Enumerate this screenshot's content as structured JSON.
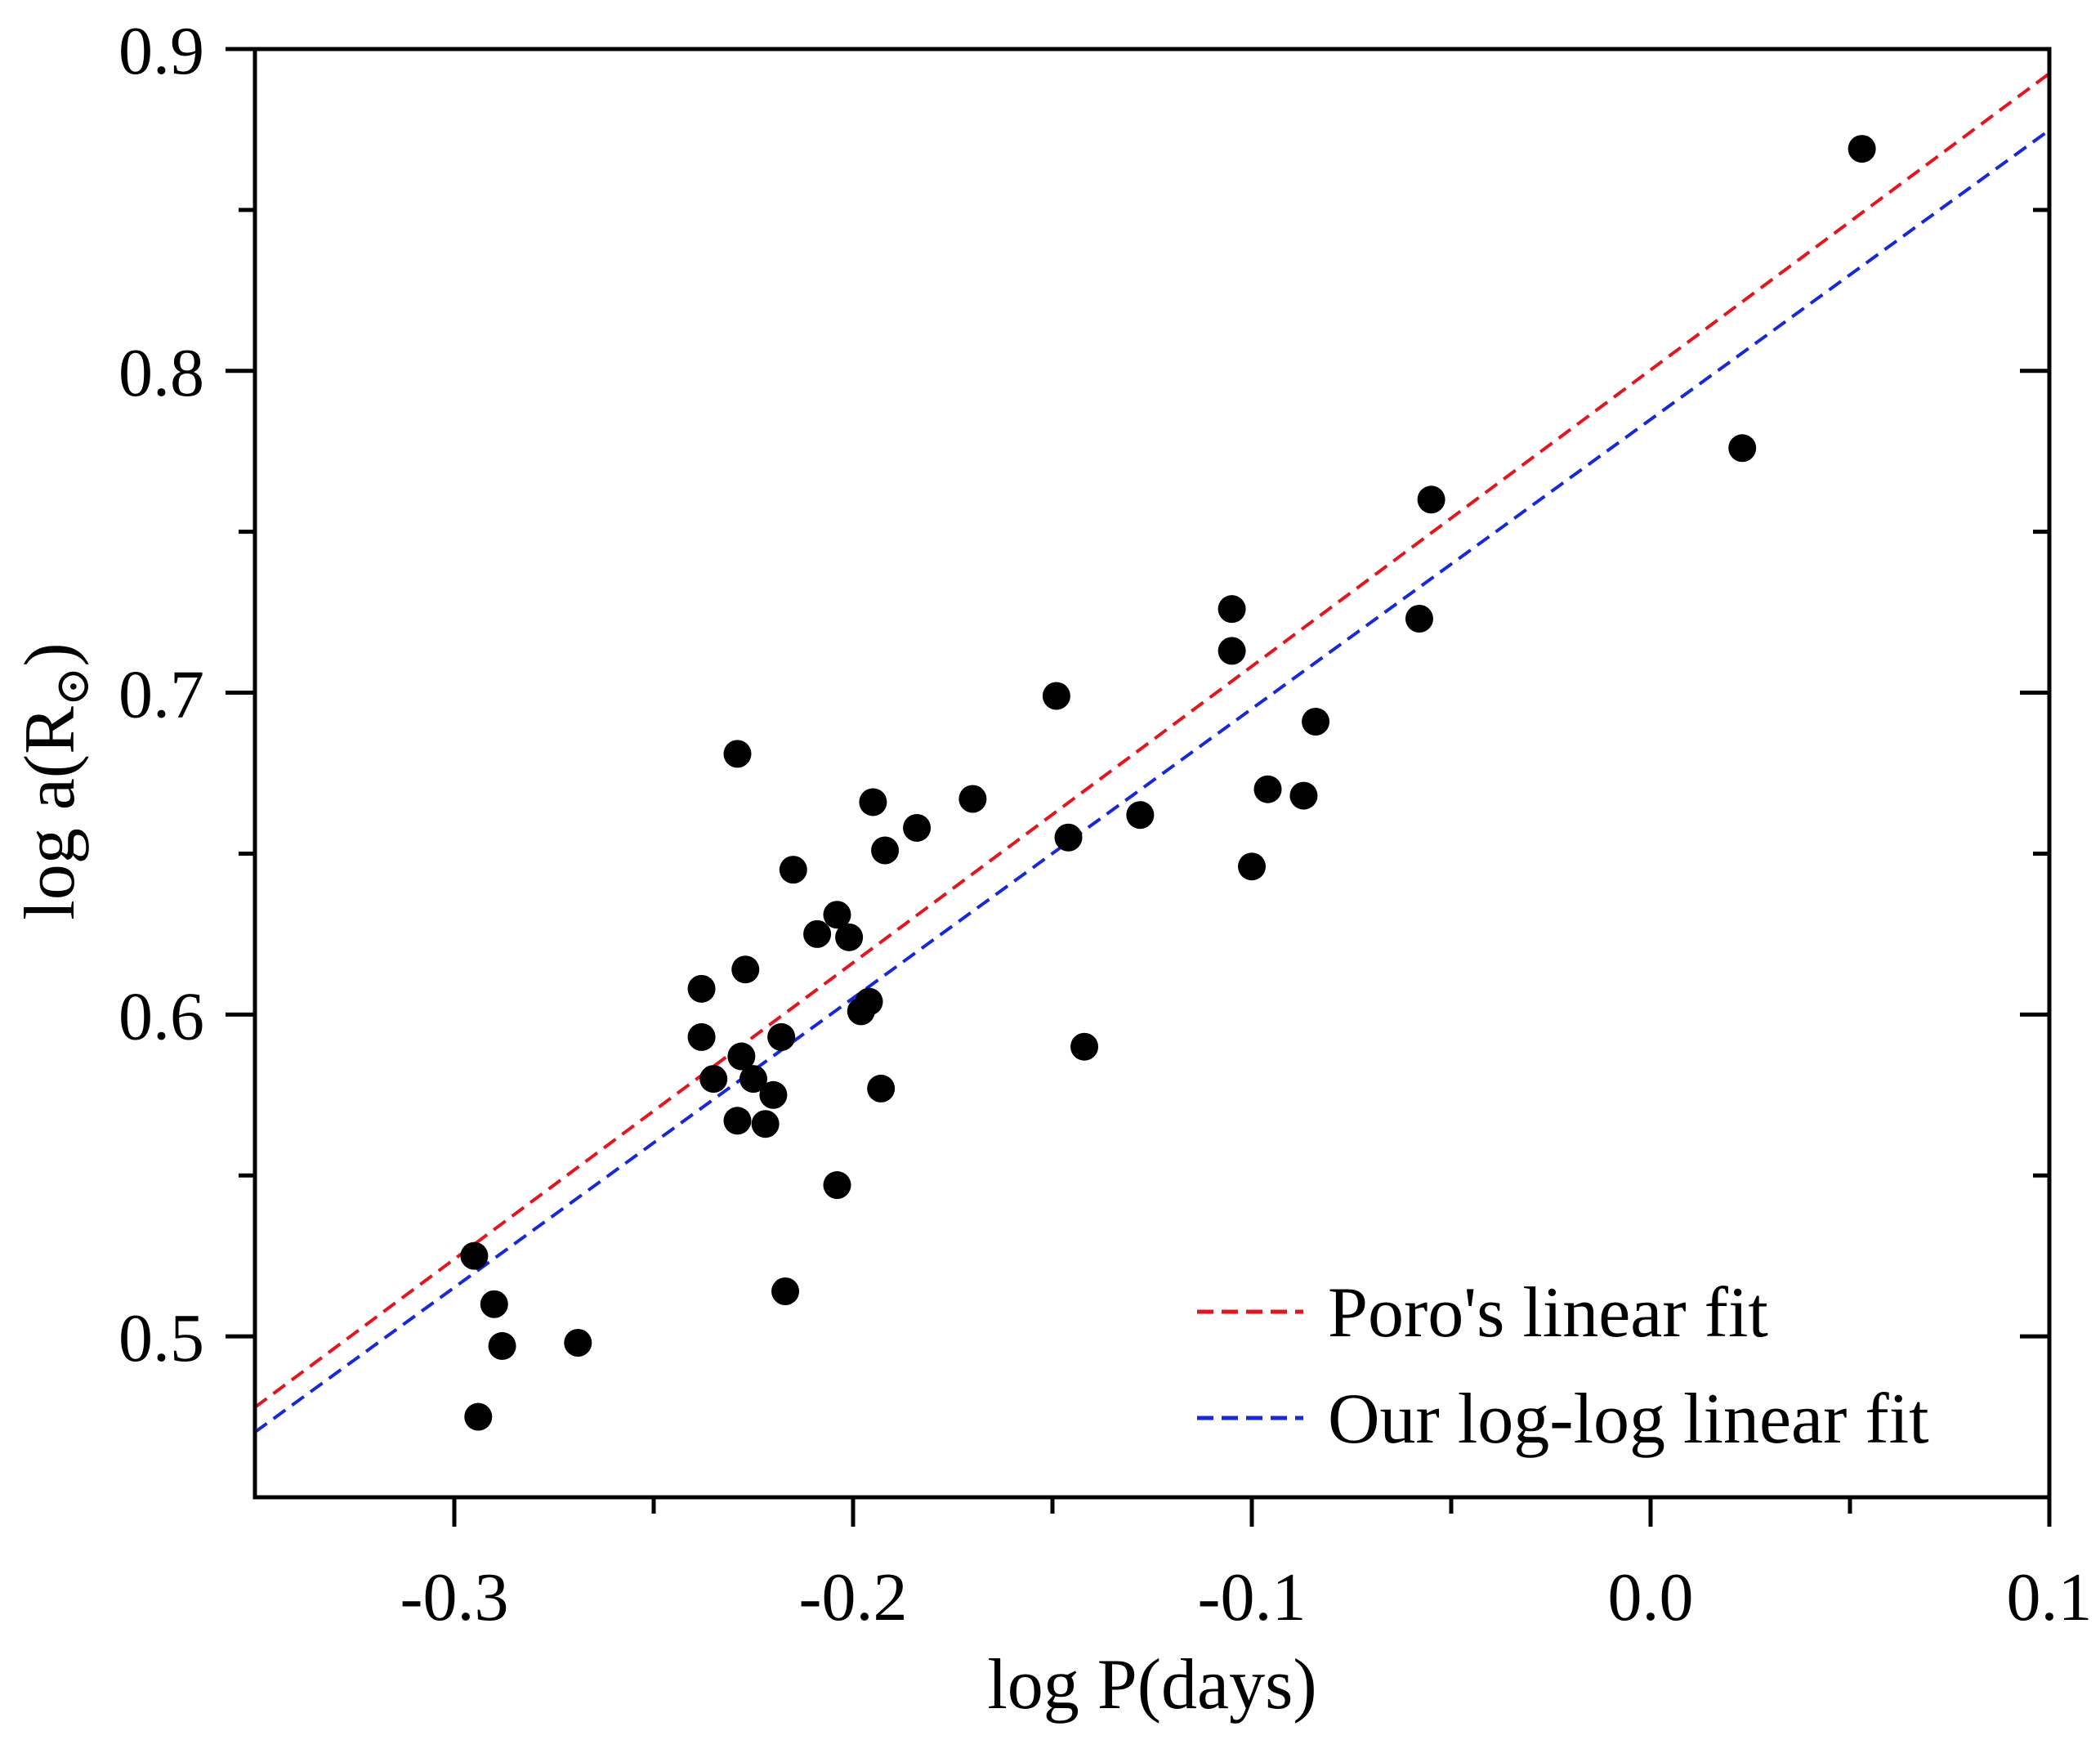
{
  "chart_data": {
    "type": "scatter",
    "title": "",
    "xlabel": "log P(days)",
    "ylabel_main": "log a(R",
    "ylabel_sub": "⊙",
    "ylabel_close": ")",
    "xlim": [
      -0.35,
      0.1
    ],
    "ylim": [
      0.45,
      0.9
    ],
    "x_ticks": [
      -0.3,
      -0.2,
      -0.1,
      0.0,
      0.1
    ],
    "x_tick_labels": [
      "-0.3",
      "-0.2",
      "-0.1",
      "0.0",
      "0.1"
    ],
    "y_ticks": [
      0.5,
      0.6,
      0.7,
      0.8,
      0.9
    ],
    "y_tick_labels": [
      "0.5",
      "0.6",
      "0.7",
      "0.8",
      "0.9"
    ],
    "x_minor_ticks": [
      -0.25,
      -0.15,
      -0.05,
      0.05
    ],
    "y_minor_ticks": [
      0.55,
      0.65,
      0.75,
      0.85
    ],
    "grid": false,
    "legend_position": "bottom-right",
    "points": [
      {
        "x": -0.295,
        "y": 0.525
      },
      {
        "x": -0.294,
        "y": 0.475
      },
      {
        "x": -0.29,
        "y": 0.51
      },
      {
        "x": -0.288,
        "y": 0.497
      },
      {
        "x": -0.269,
        "y": 0.498
      },
      {
        "x": -0.238,
        "y": 0.608
      },
      {
        "x": -0.238,
        "y": 0.593
      },
      {
        "x": -0.235,
        "y": 0.58
      },
      {
        "x": -0.229,
        "y": 0.681
      },
      {
        "x": -0.229,
        "y": 0.567
      },
      {
        "x": -0.228,
        "y": 0.587
      },
      {
        "x": -0.227,
        "y": 0.614
      },
      {
        "x": -0.225,
        "y": 0.58
      },
      {
        "x": -0.222,
        "y": 0.566
      },
      {
        "x": -0.22,
        "y": 0.575
      },
      {
        "x": -0.218,
        "y": 0.593
      },
      {
        "x": -0.217,
        "y": 0.514
      },
      {
        "x": -0.215,
        "y": 0.645
      },
      {
        "x": -0.209,
        "y": 0.625
      },
      {
        "x": -0.204,
        "y": 0.631
      },
      {
        "x": -0.204,
        "y": 0.547
      },
      {
        "x": -0.201,
        "y": 0.624
      },
      {
        "x": -0.198,
        "y": 0.601
      },
      {
        "x": -0.196,
        "y": 0.604
      },
      {
        "x": -0.195,
        "y": 0.666
      },
      {
        "x": -0.193,
        "y": 0.577
      },
      {
        "x": -0.192,
        "y": 0.651
      },
      {
        "x": -0.184,
        "y": 0.658
      },
      {
        "x": -0.17,
        "y": 0.667
      },
      {
        "x": -0.149,
        "y": 0.699
      },
      {
        "x": -0.146,
        "y": 0.655
      },
      {
        "x": -0.142,
        "y": 0.59
      },
      {
        "x": -0.128,
        "y": 0.662
      },
      {
        "x": -0.105,
        "y": 0.726
      },
      {
        "x": -0.105,
        "y": 0.713
      },
      {
        "x": -0.1,
        "y": 0.646
      },
      {
        "x": -0.096,
        "y": 0.67
      },
      {
        "x": -0.087,
        "y": 0.668
      },
      {
        "x": -0.084,
        "y": 0.691
      },
      {
        "x": -0.058,
        "y": 0.723
      },
      {
        "x": -0.055,
        "y": 0.76
      },
      {
        "x": 0.023,
        "y": 0.776
      },
      {
        "x": 0.053,
        "y": 0.869
      }
    ],
    "fits": [
      {
        "name": "Poro's linear fit",
        "color": "#e8141b",
        "slope": 0.921,
        "intercept": 0.8003,
        "x_range": [
          -0.35,
          0.1
        ]
      },
      {
        "name": "Our log-log linear fit",
        "color": "#1528e0",
        "slope": 0.899,
        "intercept": 0.7849,
        "x_range": [
          -0.35,
          0.1
        ]
      }
    ],
    "point_color": "#000000"
  }
}
